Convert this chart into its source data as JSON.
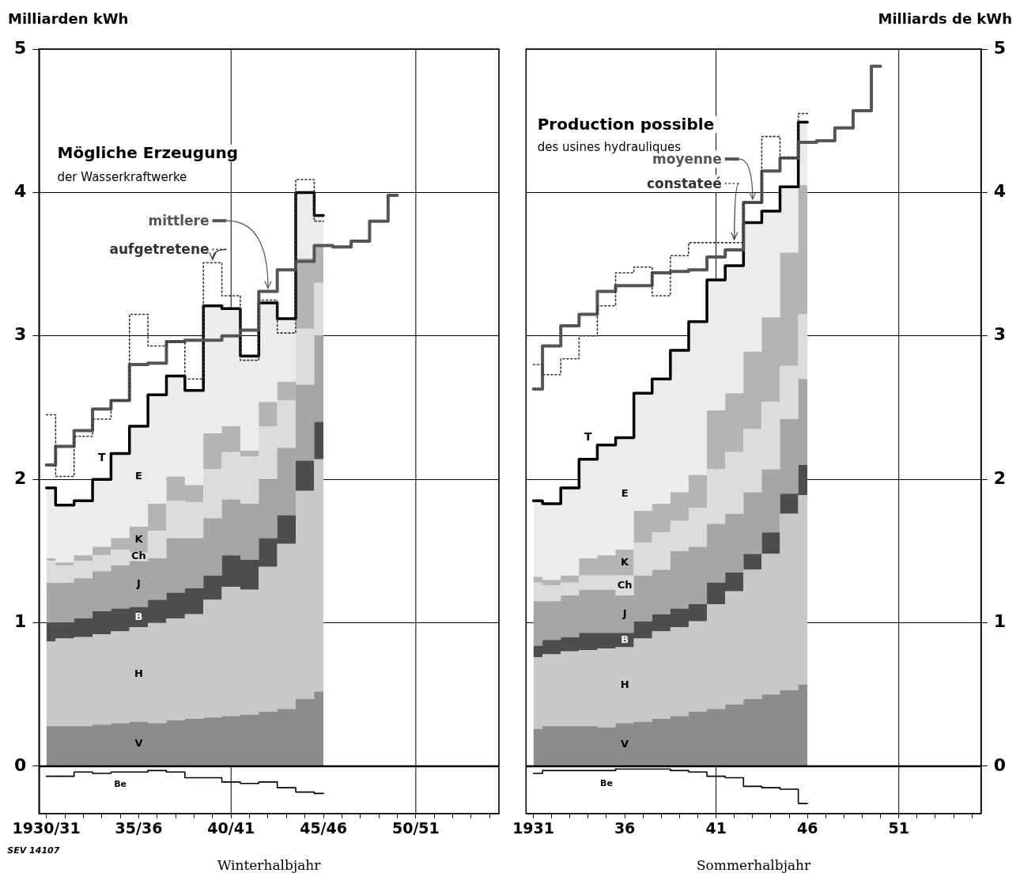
{
  "chart_data": [
    {
      "type": "area",
      "stacked": true,
      "xlabel": "Winterhalbjahr",
      "ylabel": "Milliarden kWh",
      "annotations": [
        "Mögliche Erzeugung",
        "der Wasserkraftwerke",
        "SEV 14107"
      ],
      "categories": [
        "1930/31",
        null,
        null,
        null,
        null,
        "35/36",
        null,
        null,
        null,
        null,
        "40/41",
        null,
        null,
        null,
        null,
        "45/46",
        null,
        null,
        null,
        null,
        "50/51",
        null,
        null,
        null,
        null
      ],
      "ylim": [
        -0.33,
        5
      ],
      "yticks": [
        0,
        1,
        2,
        3,
        4,
        5
      ],
      "grid": "y",
      "legend": "top left",
      "ref_lines": [
        {
          "axis": "x",
          "value": "40/41"
        },
        {
          "axis": "x",
          "value": "50/51"
        }
      ],
      "series": [
        {
          "name": "V",
          "color": "#8c8c8c",
          "values": [
            0.28,
            0.28,
            0.28,
            0.29,
            0.3,
            0.31,
            0.3,
            0.32,
            0.33,
            0.34,
            0.35,
            0.36,
            0.38,
            0.4,
            0.47,
            0.52,
            null,
            null,
            null,
            null,
            null,
            null,
            null,
            null,
            null
          ]
        },
        {
          "name": "H",
          "color": "#c8c8c8",
          "values": [
            0.59,
            0.61,
            0.62,
            0.63,
            0.64,
            0.66,
            0.7,
            0.71,
            0.73,
            0.82,
            0.9,
            0.87,
            1.01,
            1.15,
            1.45,
            1.62,
            null,
            null,
            null,
            null,
            null,
            null,
            null,
            null,
            null
          ]
        },
        {
          "name": "B",
          "color": "#4d4d4d",
          "values": [
            0.13,
            0.11,
            0.13,
            0.16,
            0.16,
            0.14,
            0.16,
            0.18,
            0.18,
            0.17,
            0.22,
            0.21,
            0.2,
            0.2,
            0.21,
            0.26,
            null,
            null,
            null,
            null,
            null,
            null,
            null,
            null,
            null
          ]
        },
        {
          "name": "J",
          "color": "#a6a6a6",
          "values": [
            0.28,
            0.28,
            0.28,
            0.28,
            0.3,
            0.32,
            0.29,
            0.38,
            0.35,
            0.4,
            0.39,
            0.39,
            0.41,
            0.47,
            0.53,
            0.6,
            null,
            null,
            null,
            null,
            null,
            null,
            null,
            null,
            null
          ]
        },
        {
          "name": "Ch",
          "color": "#dcdcdc",
          "values": [
            0.15,
            0.12,
            0.12,
            0.11,
            0.11,
            0.06,
            0.19,
            0.26,
            0.25,
            0.34,
            0.33,
            0.33,
            0.37,
            0.33,
            0.39,
            0.37,
            null,
            null,
            null,
            null,
            null,
            null,
            null,
            null,
            null
          ]
        },
        {
          "name": "K",
          "color": "#b4b4b4",
          "values": [
            0.02,
            0.02,
            0.04,
            0.06,
            0.08,
            0.18,
            0.19,
            0.17,
            0.12,
            0.25,
            0.18,
            0.04,
            0.17,
            0.13,
            0.49,
            0.26,
            null,
            null,
            null,
            null,
            null,
            null,
            null,
            null,
            null
          ]
        },
        {
          "name": "E",
          "color": "#ececec",
          "values": [
            0.49,
            0.4,
            0.38,
            0.47,
            0.59,
            0.7,
            0.76,
            0.7,
            0.66,
            0.89,
            0.82,
            0.66,
            0.69,
            0.44,
            0.46,
            0.21,
            null,
            null,
            null,
            null,
            null,
            null,
            null,
            null,
            null
          ]
        },
        {
          "name": "T",
          "type": "step",
          "color": "#000000",
          "values": [
            1.94,
            1.82,
            1.85,
            2.0,
            2.18,
            2.37,
            2.59,
            2.72,
            2.62,
            3.21,
            3.19,
            2.86,
            3.23,
            3.12,
            4.0,
            3.84,
            null,
            null,
            null,
            null,
            null,
            null,
            null,
            null,
            null
          ]
        },
        {
          "name": "mittlere",
          "type": "step",
          "color": "#555555",
          "values": [
            2.1,
            2.23,
            2.34,
            2.49,
            2.55,
            2.8,
            2.81,
            2.96,
            2.97,
            2.97,
            3.0,
            3.04,
            3.31,
            3.46,
            3.52,
            3.63,
            3.62,
            3.66,
            3.8,
            3.98,
            null,
            null,
            null,
            null,
            null
          ]
        },
        {
          "name": "aufgetretene",
          "type": "step",
          "color": "#333333",
          "line_style": "dotted",
          "values": [
            2.45,
            2.02,
            2.3,
            2.42,
            2.55,
            3.15,
            2.93,
            2.96,
            2.7,
            3.51,
            3.28,
            2.83,
            3.25,
            3.02,
            4.09,
            3.8,
            null,
            null,
            null,
            null,
            null,
            null,
            null,
            null,
            null
          ]
        },
        {
          "name": "Be",
          "type": "step",
          "color": "#000000",
          "values": [
            -0.07,
            -0.07,
            -0.04,
            -0.05,
            -0.04,
            -0.04,
            -0.03,
            -0.04,
            -0.08,
            -0.08,
            -0.11,
            -0.12,
            -0.11,
            -0.15,
            -0.18,
            -0.19,
            null,
            null,
            null,
            null,
            null,
            null,
            null,
            null,
            null
          ]
        }
      ]
    },
    {
      "type": "area",
      "stacked": true,
      "xlabel": "Sommerhalbjahr",
      "ylabel": "Milliards de kWh",
      "annotations": [
        "Production possible",
        "des usines hydrauliques"
      ],
      "categories": [
        "1931",
        null,
        null,
        null,
        null,
        "36",
        null,
        null,
        null,
        null,
        "41",
        null,
        null,
        null,
        null,
        "46",
        null,
        null,
        null,
        null,
        "51",
        null,
        null,
        null,
        null
      ],
      "ylim": [
        -0.33,
        5
      ],
      "yticks": [
        0,
        1,
        2,
        3,
        4,
        5
      ],
      "grid": "y",
      "legend": "top left",
      "ref_lines": [
        {
          "axis": "x",
          "value": "41"
        },
        {
          "axis": "x",
          "value": "51"
        }
      ],
      "series": [
        {
          "name": "V",
          "color": "#8c8c8c",
          "values": [
            0.26,
            0.28,
            0.28,
            0.28,
            0.27,
            0.3,
            0.31,
            0.33,
            0.35,
            0.38,
            0.4,
            0.43,
            0.47,
            0.5,
            0.53,
            0.57,
            null,
            null,
            null,
            null,
            null,
            null,
            null,
            null,
            null
          ]
        },
        {
          "name": "H",
          "color": "#c8c8c8",
          "values": [
            0.5,
            0.5,
            0.52,
            0.53,
            0.55,
            0.53,
            0.58,
            0.61,
            0.62,
            0.63,
            0.73,
            0.79,
            0.9,
            0.98,
            1.23,
            1.32,
            null,
            null,
            null,
            null,
            null,
            null,
            null,
            null,
            null
          ]
        },
        {
          "name": "B",
          "color": "#4d4d4d",
          "values": [
            0.08,
            0.1,
            0.1,
            0.12,
            0.11,
            0.1,
            0.12,
            0.12,
            0.13,
            0.12,
            0.15,
            0.13,
            0.11,
            0.15,
            0.14,
            0.21,
            null,
            null,
            null,
            null,
            null,
            null,
            null,
            null,
            null
          ]
        },
        {
          "name": "J",
          "color": "#a6a6a6",
          "values": [
            0.31,
            0.27,
            0.29,
            0.3,
            0.3,
            0.26,
            0.32,
            0.31,
            0.4,
            0.4,
            0.41,
            0.41,
            0.43,
            0.44,
            0.52,
            0.6,
            null,
            null,
            null,
            null,
            null,
            null,
            null,
            null,
            null
          ]
        },
        {
          "name": "Ch",
          "color": "#dcdcdc",
          "values": [
            0.13,
            0.11,
            0.09,
            0.1,
            0.1,
            0.14,
            0.23,
            0.26,
            0.21,
            0.27,
            0.38,
            0.43,
            0.44,
            0.47,
            0.37,
            0.45,
            null,
            null,
            null,
            null,
            null,
            null,
            null,
            null,
            null
          ]
        },
        {
          "name": "K",
          "color": "#b4b4b4",
          "values": [
            0.04,
            0.04,
            0.05,
            0.12,
            0.14,
            0.18,
            0.22,
            0.2,
            0.2,
            0.23,
            0.41,
            0.41,
            0.54,
            0.59,
            0.79,
            0.9,
            null,
            null,
            null,
            null,
            null,
            null,
            null,
            null,
            null
          ]
        },
        {
          "name": "E",
          "color": "#ececec",
          "values": [
            0.53,
            0.53,
            0.61,
            0.69,
            0.77,
            0.78,
            0.82,
            0.87,
            0.99,
            1.07,
            0.91,
            0.89,
            0.9,
            0.74,
            0.46,
            0.44,
            null,
            null,
            null,
            null,
            null,
            null,
            null,
            null,
            null
          ]
        },
        {
          "name": "T",
          "type": "step",
          "color": "#000000",
          "values": [
            1.85,
            1.83,
            1.94,
            2.14,
            2.24,
            2.29,
            2.6,
            2.7,
            2.9,
            3.1,
            3.39,
            3.49,
            3.79,
            3.87,
            4.04,
            4.49,
            null,
            null,
            null,
            null,
            null,
            null,
            null,
            null,
            null
          ]
        },
        {
          "name": "moyenne",
          "type": "step",
          "color": "#555555",
          "values": [
            2.63,
            2.93,
            3.07,
            3.15,
            3.31,
            3.35,
            3.35,
            3.44,
            3.45,
            3.46,
            3.55,
            3.6,
            3.93,
            4.15,
            4.24,
            4.35,
            4.36,
            4.45,
            4.57,
            4.88,
            null,
            null,
            null,
            null,
            null
          ]
        },
        {
          "name": "constateé",
          "type": "step",
          "color": "#333333",
          "line_style": "dotted",
          "values": [
            2.8,
            2.73,
            2.84,
            3.0,
            3.21,
            3.44,
            3.48,
            3.28,
            3.56,
            3.65,
            3.65,
            3.65,
            3.93,
            4.39,
            4.24,
            4.55,
            null,
            null,
            null,
            null,
            null,
            null,
            null,
            null,
            null
          ]
        },
        {
          "name": "Be",
          "type": "step",
          "color": "#000000",
          "values": [
            -0.05,
            -0.03,
            -0.03,
            -0.03,
            -0.03,
            -0.02,
            -0.02,
            -0.02,
            -0.03,
            -0.04,
            -0.07,
            -0.08,
            -0.14,
            -0.15,
            -0.16,
            -0.26,
            null,
            null,
            null,
            null,
            null,
            null,
            null,
            null,
            null
          ]
        }
      ]
    }
  ]
}
